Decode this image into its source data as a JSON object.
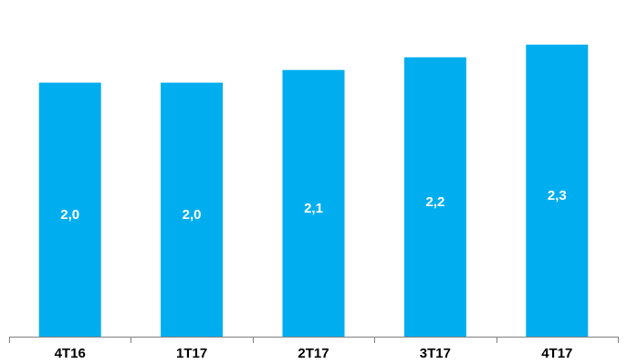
{
  "chart_data": {
    "type": "bar",
    "categories": [
      "4T16",
      "1T17",
      "2T17",
      "3T17",
      "4T17"
    ],
    "values": [
      2.0,
      2.0,
      2.1,
      2.2,
      2.3
    ],
    "data_labels": [
      "2,0",
      "2,0",
      "2,1",
      "2,2",
      "2,3"
    ],
    "title": "",
    "xlabel": "",
    "ylabel": "",
    "ylim": [
      0,
      2.45
    ],
    "grid": false,
    "legend": "none",
    "colors": {
      "bar": "#00AEEF",
      "data_label": "#FFFFFF",
      "tick_label": "#000000",
      "axis": "#808080"
    }
  }
}
